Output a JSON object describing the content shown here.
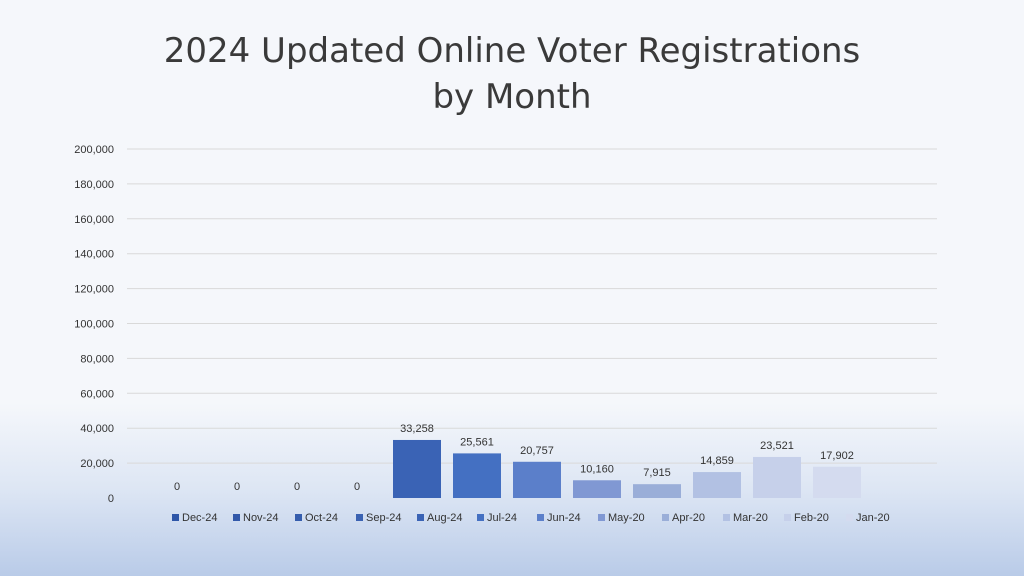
{
  "chart_data": {
    "type": "bar",
    "title_lines": [
      "2024 Updated Online Voter Registrations",
      "by Month"
    ],
    "categories": [
      "Dec-24",
      "Nov-24",
      "Oct-24",
      "Sep-24",
      "Aug-24",
      "Jul-24",
      "Jun-24",
      "May-20",
      "Apr-20",
      "Mar-20",
      "Feb-20",
      "Jan-20"
    ],
    "values": [
      0,
      0,
      0,
      0,
      33258,
      25561,
      20757,
      10160,
      7915,
      14859,
      23521,
      17902
    ],
    "data_labels": [
      "0",
      "0",
      "0",
      "0",
      "33,258",
      "25,561",
      "20,757",
      "10,160",
      "7,915",
      "14,859",
      "23,521",
      "17,902"
    ],
    "colors": [
      "#2e56a8",
      "#3259aa",
      "#355dad",
      "#3a62b2",
      "#3a63b5",
      "#4470c2",
      "#5b7fca",
      "#8098d3",
      "#9aaed8",
      "#b2c1e3",
      "#c6d0ea",
      "#d4dbef"
    ],
    "ylim": [
      0,
      200000
    ],
    "yticks": [
      0,
      20000,
      40000,
      60000,
      80000,
      100000,
      120000,
      140000,
      160000,
      180000,
      200000
    ],
    "ytick_labels": [
      "0",
      "20,000",
      "40,000",
      "60,000",
      "80,000",
      "100,000",
      "120,000",
      "140,000",
      "160,000",
      "180,000",
      "200,000"
    ],
    "grid": true,
    "legend_position": "bottom",
    "xlabel": "",
    "ylabel": ""
  }
}
